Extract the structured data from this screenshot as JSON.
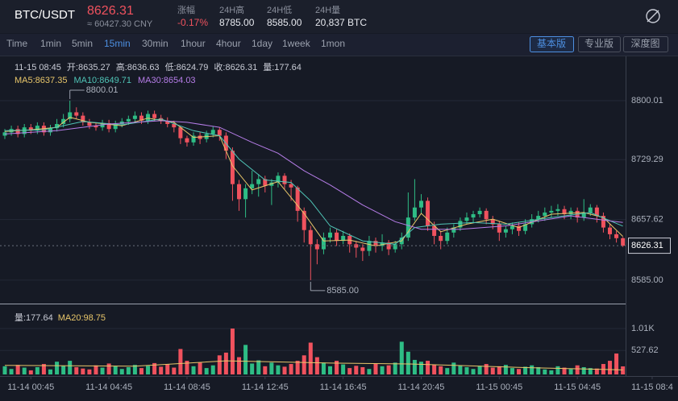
{
  "header": {
    "pair": "BTC/USDT",
    "price": "8626.31",
    "cny": "≈ 60427.30 CNY",
    "stats": [
      {
        "label": "涨幅",
        "value": "-0.17%"
      },
      {
        "label": "24H高",
        "value": "8785.00"
      },
      {
        "label": "24H低",
        "value": "8585.00"
      },
      {
        "label": "24H量",
        "value": "20,837 BTC"
      }
    ]
  },
  "toolbar": {
    "intervals": [
      "Time",
      "1min",
      "5min",
      "15min",
      "30min",
      "1hour",
      "4hour",
      "1day",
      "1week",
      "1mon"
    ],
    "active": "15min",
    "views": [
      "基本版",
      "专业版",
      "深度图"
    ],
    "active_view": "基本版"
  },
  "chart_data": [
    {
      "type": "candlestick",
      "info": [
        "11-15 08:45",
        "开:8635.27",
        "高:8636.63",
        "低:8624.79",
        "收:8626.31",
        "量:177.64"
      ],
      "up_color": "#2ebd85",
      "down_color": "#f0525e",
      "open": [
        8758,
        8762,
        8766,
        8760,
        8768,
        8764,
        8770,
        8762,
        8767,
        8772,
        8778,
        8786,
        8782,
        8774,
        8770,
        8768,
        8773,
        8766,
        8772,
        8775,
        8778,
        8782,
        8776,
        8784,
        8779,
        8776,
        8772,
        8768,
        8755,
        8750,
        8758,
        8754,
        8760,
        8765,
        8758,
        8740,
        8700,
        8682,
        8695,
        8700,
        8706,
        8698,
        8702,
        8710,
        8700,
        8696,
        8668,
        8645,
        8628,
        8622,
        8636,
        8642,
        8632,
        8638,
        8628,
        8624,
        8620,
        8632,
        8626,
        8630,
        8622,
        8628,
        8636,
        8660,
        8672,
        8680,
        8650,
        8638,
        8632,
        8642,
        8648,
        8656,
        8660,
        8664,
        8668,
        8658,
        8652,
        8642,
        8646,
        8650,
        8644,
        8652,
        8658,
        8662,
        8666,
        8668,
        8670,
        8664,
        8668,
        8660,
        8666,
        8672,
        8662,
        8648,
        8640,
        8635.27
      ],
      "high": [
        8766,
        8770,
        8770,
        8772,
        8772,
        8774,
        8774,
        8771,
        8778,
        8784,
        8800.01,
        8792,
        8786,
        8778,
        8774,
        8777,
        8777,
        8776,
        8779,
        8782,
        8787,
        8786,
        8788,
        8788,
        8783,
        8780,
        8776,
        8770,
        8758,
        8762,
        8762,
        8764,
        8769,
        8768,
        8762,
        8744,
        8705,
        8700,
        8716,
        8712,
        8710,
        8706,
        8714,
        8713,
        8705,
        8698,
        8672,
        8650,
        8634,
        8642,
        8648,
        8646,
        8644,
        8641,
        8632,
        8628,
        8638,
        8636,
        8640,
        8633,
        8632,
        8642,
        8690,
        8706,
        8688,
        8684,
        8655,
        8644,
        8648,
        8652,
        8660,
        8666,
        8668,
        8672,
        8671,
        8662,
        8656,
        8650,
        8654,
        8654,
        8658,
        8664,
        8668,
        8672,
        8674,
        8676,
        8674,
        8672,
        8672,
        8682,
        8676,
        8675,
        8666,
        8652,
        8644,
        8636.63
      ],
      "low": [
        8754,
        8758,
        8756,
        8756,
        8760,
        8760,
        8758,
        8758,
        8763,
        8768,
        8774,
        8778,
        8770,
        8766,
        8764,
        8764,
        8762,
        8762,
        8768,
        8771,
        8774,
        8772,
        8772,
        8775,
        8772,
        8768,
        8762,
        8748,
        8745,
        8746,
        8748,
        8750,
        8756,
        8752,
        8730,
        8680,
        8668,
        8660,
        8688,
        8685,
        8690,
        8675,
        8696,
        8694,
        8680,
        8655,
        8630,
        8585.0,
        8604,
        8616,
        8630,
        8626,
        8628,
        8618,
        8612,
        8608,
        8614,
        8618,
        8620,
        8615,
        8618,
        8622,
        8632,
        8656,
        8665,
        8644,
        8628,
        8622,
        8628,
        8636,
        8644,
        8652,
        8654,
        8660,
        8652,
        8646,
        8632,
        8636,
        8640,
        8638,
        8640,
        8648,
        8654,
        8656,
        8660,
        8662,
        8658,
        8658,
        8654,
        8656,
        8662,
        8654,
        8642,
        8634,
        8630,
        8624.79
      ],
      "close": [
        8762,
        8766,
        8760,
        8768,
        8764,
        8770,
        8762,
        8767,
        8772,
        8778,
        8786,
        8782,
        8774,
        8770,
        8768,
        8773,
        8766,
        8772,
        8775,
        8778,
        8782,
        8776,
        8784,
        8779,
        8776,
        8772,
        8768,
        8755,
        8750,
        8758,
        8754,
        8760,
        8765,
        8758,
        8740,
        8700,
        8682,
        8695,
        8700,
        8706,
        8698,
        8702,
        8710,
        8700,
        8696,
        8668,
        8645,
        8628,
        8622,
        8636,
        8642,
        8632,
        8638,
        8628,
        8624,
        8620,
        8632,
        8626,
        8630,
        8622,
        8628,
        8636,
        8660,
        8672,
        8680,
        8650,
        8638,
        8632,
        8642,
        8648,
        8656,
        8660,
        8664,
        8668,
        8658,
        8652,
        8642,
        8646,
        8650,
        8644,
        8652,
        8658,
        8662,
        8666,
        8668,
        8670,
        8664,
        8668,
        8660,
        8666,
        8672,
        8662,
        8648,
        8640,
        8635.27,
        8626.31
      ],
      "ylim": [
        8556,
        8853
      ],
      "yticks": [
        8800.01,
        8729.29,
        8657.62,
        {
          "value": 8585,
          "label": "8585.00"
        }
      ],
      "grid": true,
      "annotations": [
        {
          "value": 8800.01,
          "label": "8800.01"
        },
        {
          "value": 8585,
          "label": "8585.00"
        }
      ],
      "moving_averages": [
        {
          "label": "MA5:8637.35",
          "color": "#e8c66a",
          "x": [
            0,
            4,
            8,
            10,
            13,
            18,
            22,
            26,
            29,
            33,
            35,
            38,
            42,
            46,
            49,
            53,
            57,
            61,
            64,
            67,
            71,
            75,
            79,
            84,
            89,
            92,
            95
          ],
          "values": [
            8763,
            8765,
            8768,
            8780,
            8774,
            8770,
            8779,
            8774,
            8756,
            8758,
            8722,
            8693,
            8703,
            8665,
            8632,
            8633,
            8626,
            8632,
            8665,
            8643,
            8652,
            8658,
            8648,
            8664,
            8666,
            8660,
            8637.35
          ]
        },
        {
          "label": "MA10:8649.71",
          "color": "#4fc4b6",
          "x": [
            0,
            6,
            12,
            18,
            24,
            29,
            33,
            36,
            40,
            44,
            47,
            50,
            55,
            60,
            63,
            67,
            72,
            77,
            84,
            90,
            95
          ],
          "values": [
            8764,
            8765,
            8775,
            8771,
            8778,
            8764,
            8758,
            8730,
            8705,
            8702,
            8680,
            8650,
            8632,
            8628,
            8648,
            8652,
            8654,
            8652,
            8660,
            8666,
            8649.71
          ]
        },
        {
          "label": "MA30:8654.03",
          "color": "#b67de8",
          "x": [
            0,
            8,
            16,
            24,
            28,
            33,
            38,
            42,
            46,
            50,
            55,
            60,
            64,
            70,
            77,
            87,
            95
          ],
          "values": [
            8760,
            8764,
            8772,
            8776,
            8774,
            8768,
            8750,
            8737,
            8716,
            8699,
            8675,
            8655,
            8646,
            8646,
            8650,
            8662,
            8654.03
          ]
        }
      ]
    },
    {
      "type": "bar",
      "title": "量:177.64",
      "values": [
        180,
        120,
        210,
        150,
        90,
        160,
        230,
        110,
        280,
        190,
        300,
        160,
        130,
        110,
        200,
        150,
        240,
        180,
        120,
        160,
        210,
        140,
        190,
        250,
        170,
        220,
        150,
        560,
        300,
        180,
        260,
        140,
        200,
        420,
        480,
        1010,
        380,
        650,
        240,
        310,
        180,
        260,
        200,
        170,
        230,
        300,
        420,
        700,
        380,
        260,
        180,
        300,
        220,
        140,
        190,
        160,
        120,
        240,
        180,
        200,
        260,
        720,
        500,
        320,
        280,
        300,
        220,
        180,
        140,
        260,
        200,
        160,
        120,
        190,
        230,
        150,
        180,
        210,
        140,
        120,
        170,
        200,
        160,
        110,
        90,
        180,
        150,
        120,
        200,
        160,
        140,
        130,
        230,
        300,
        460,
        177.64
      ],
      "ylim": [
        0,
        1418
      ],
      "yticks": [
        {
          "value": 1010,
          "label": "1.01K"
        },
        527.62
      ],
      "moving_averages": [
        {
          "label": "MA20:98.75",
          "color": "#e8c66a",
          "x": [
            0,
            20,
            34,
            50,
            62,
            80,
            95
          ],
          "values": [
            200,
            180,
            300,
            250,
            230,
            150,
            98.75
          ]
        }
      ],
      "xticks": [
        {
          "value": 4,
          "label": "11-14 00:45"
        },
        {
          "value": 16,
          "label": "11-14 04:45"
        },
        {
          "value": 28,
          "label": "11-14 08:45"
        },
        {
          "value": 40,
          "label": "11-14 12:45"
        },
        {
          "value": 52,
          "label": "11-14 16:45"
        },
        {
          "value": 64,
          "label": "11-14 20:45"
        },
        {
          "value": 76,
          "label": "11-15 00:45"
        },
        {
          "value": 88,
          "label": "11-15 04:45"
        },
        {
          "value": 99.5,
          "label": "11-15 08:4"
        }
      ]
    }
  ]
}
